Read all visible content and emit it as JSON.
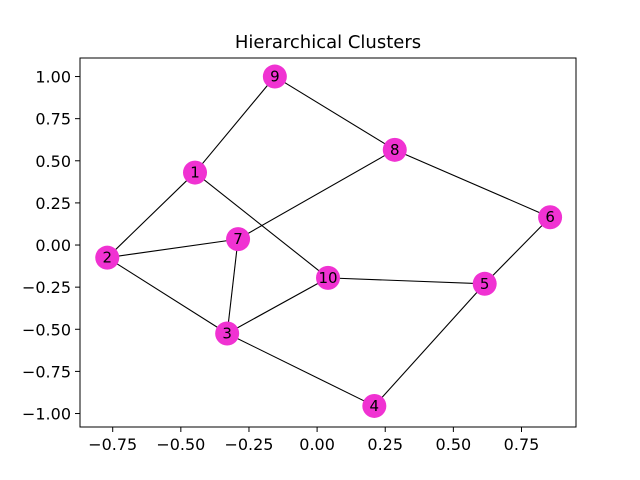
{
  "chart_data": {
    "type": "scatter",
    "subtype": "network-graph",
    "title": "Hierarchical Clusters",
    "xlabel": "",
    "ylabel": "",
    "xlim": [
      -0.87,
      0.95
    ],
    "ylim": [
      -1.08,
      1.11
    ],
    "x_ticks": [
      -0.75,
      -0.5,
      -0.25,
      0.0,
      0.25,
      0.5,
      0.75
    ],
    "x_tick_labels": [
      "−0.75",
      "−0.50",
      "−0.25",
      "0.00",
      "0.25",
      "0.50",
      "0.75"
    ],
    "y_ticks": [
      1.0,
      0.75,
      0.5,
      0.25,
      0.0,
      -0.25,
      -0.5,
      -0.75,
      -1.0
    ],
    "y_tick_labels": [
      "1.00",
      "0.75",
      "0.50",
      "0.25",
      "0.00",
      "−0.25",
      "−0.50",
      "−0.75",
      "−1.00"
    ],
    "grid": false,
    "node_color": "#f032d2",
    "edge_color": "#000000",
    "nodes": [
      {
        "id": "1",
        "x": -0.448,
        "y": 0.43
      },
      {
        "id": "2",
        "x": -0.77,
        "y": -0.075
      },
      {
        "id": "3",
        "x": -0.33,
        "y": -0.525
      },
      {
        "id": "4",
        "x": 0.21,
        "y": -0.955
      },
      {
        "id": "5",
        "x": 0.615,
        "y": -0.23
      },
      {
        "id": "6",
        "x": 0.855,
        "y": 0.165
      },
      {
        "id": "7",
        "x": -0.29,
        "y": 0.035
      },
      {
        "id": "8",
        "x": 0.285,
        "y": 0.565
      },
      {
        "id": "9",
        "x": -0.155,
        "y": 1.0
      },
      {
        "id": "10",
        "x": 0.04,
        "y": -0.195
      }
    ],
    "edges": [
      [
        "9",
        "1"
      ],
      [
        "9",
        "8"
      ],
      [
        "1",
        "2"
      ],
      [
        "1",
        "10"
      ],
      [
        "8",
        "7"
      ],
      [
        "8",
        "6"
      ],
      [
        "2",
        "7"
      ],
      [
        "2",
        "3"
      ],
      [
        "7",
        "3"
      ],
      [
        "3",
        "10"
      ],
      [
        "3",
        "4"
      ],
      [
        "10",
        "5"
      ],
      [
        "5",
        "6"
      ],
      [
        "5",
        "4"
      ]
    ]
  }
}
